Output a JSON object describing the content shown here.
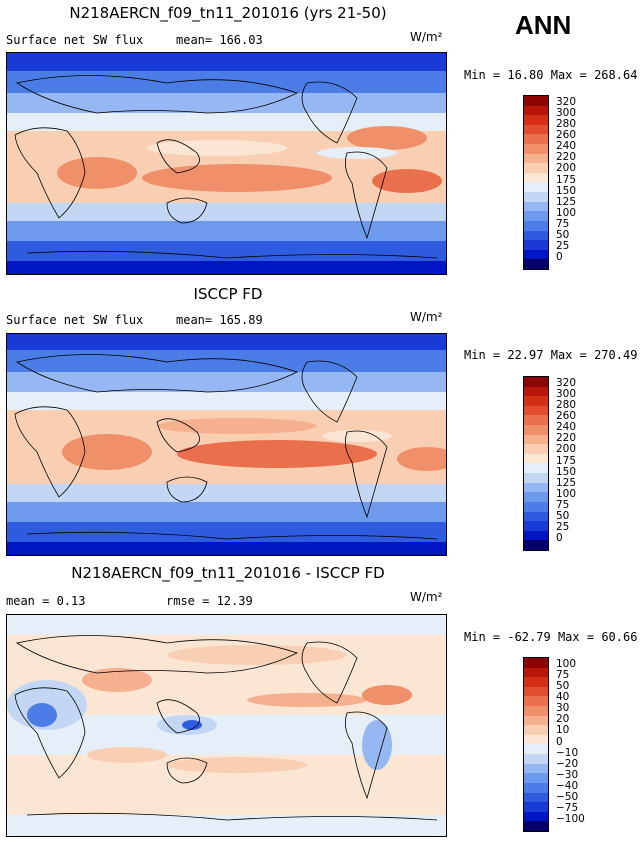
{
  "season": "ANN",
  "colors": {
    "abs_scale": [
      "#08006a",
      "#0015c4",
      "#1a3ad6",
      "#2f5cde",
      "#4c7de6",
      "#6e9aee",
      "#96b8f2",
      "#c3d7f5",
      "#e6eef8",
      "#fbe6d3",
      "#f9cfb3",
      "#f5b08e",
      "#f0906b",
      "#ea6f4c",
      "#e14e2d",
      "#d42e14",
      "#b8160a",
      "#8c0404"
    ],
    "diff_scale": [
      "#08006a",
      "#0015c4",
      "#1a3ad6",
      "#2f5cde",
      "#4c7de6",
      "#6e9aee",
      "#96b8f2",
      "#c3d7f5",
      "#e6eef8",
      "#fbe6d3",
      "#f9cfb3",
      "#f5b08e",
      "#f0906b",
      "#ea6f4c",
      "#e14e2d",
      "#d42e14",
      "#b8160a",
      "#8c0404"
    ]
  },
  "panels": [
    {
      "title": "N218AERCN_f09_tn11_201016 (yrs 21-50)",
      "left_label": "Surface net SW flux",
      "right_label": "mean= 166.03",
      "units": "W/m²",
      "min_label": "Min =",
      "min_value": "16.80",
      "max_label": "Max =",
      "max_value": "268.64",
      "ticks": [
        "320",
        "300",
        "280",
        "260",
        "240",
        "220",
        "200",
        "175",
        "150",
        "125",
        "100",
        "75",
        "50",
        "25",
        "0"
      ]
    },
    {
      "title": "ISCCP FD",
      "left_label": "Surface net SW flux",
      "right_label": "mean= 165.89",
      "units": "W/m²",
      "min_label": "Min =",
      "min_value": "22.97",
      "max_label": "Max =",
      "max_value": "270.49",
      "ticks": [
        "320",
        "300",
        "280",
        "260",
        "240",
        "220",
        "200",
        "175",
        "150",
        "125",
        "100",
        "75",
        "50",
        "25",
        "0"
      ]
    },
    {
      "title": "N218AERCN_f09_tn11_201016 - ISCCP FD",
      "left_label": "mean =   0.13",
      "right_label": "rmse =  12.39",
      "units": "W/m²",
      "min_label": "Min =",
      "min_value": "-62.79",
      "max_label": "Max =",
      "max_value": "60.66",
      "ticks": [
        "100",
        "75",
        "50",
        "40",
        "30",
        "20",
        "10",
        "0",
        "−10",
        "−20",
        "−30",
        "−40",
        "−50",
        "−75",
        "−100"
      ]
    }
  ]
}
